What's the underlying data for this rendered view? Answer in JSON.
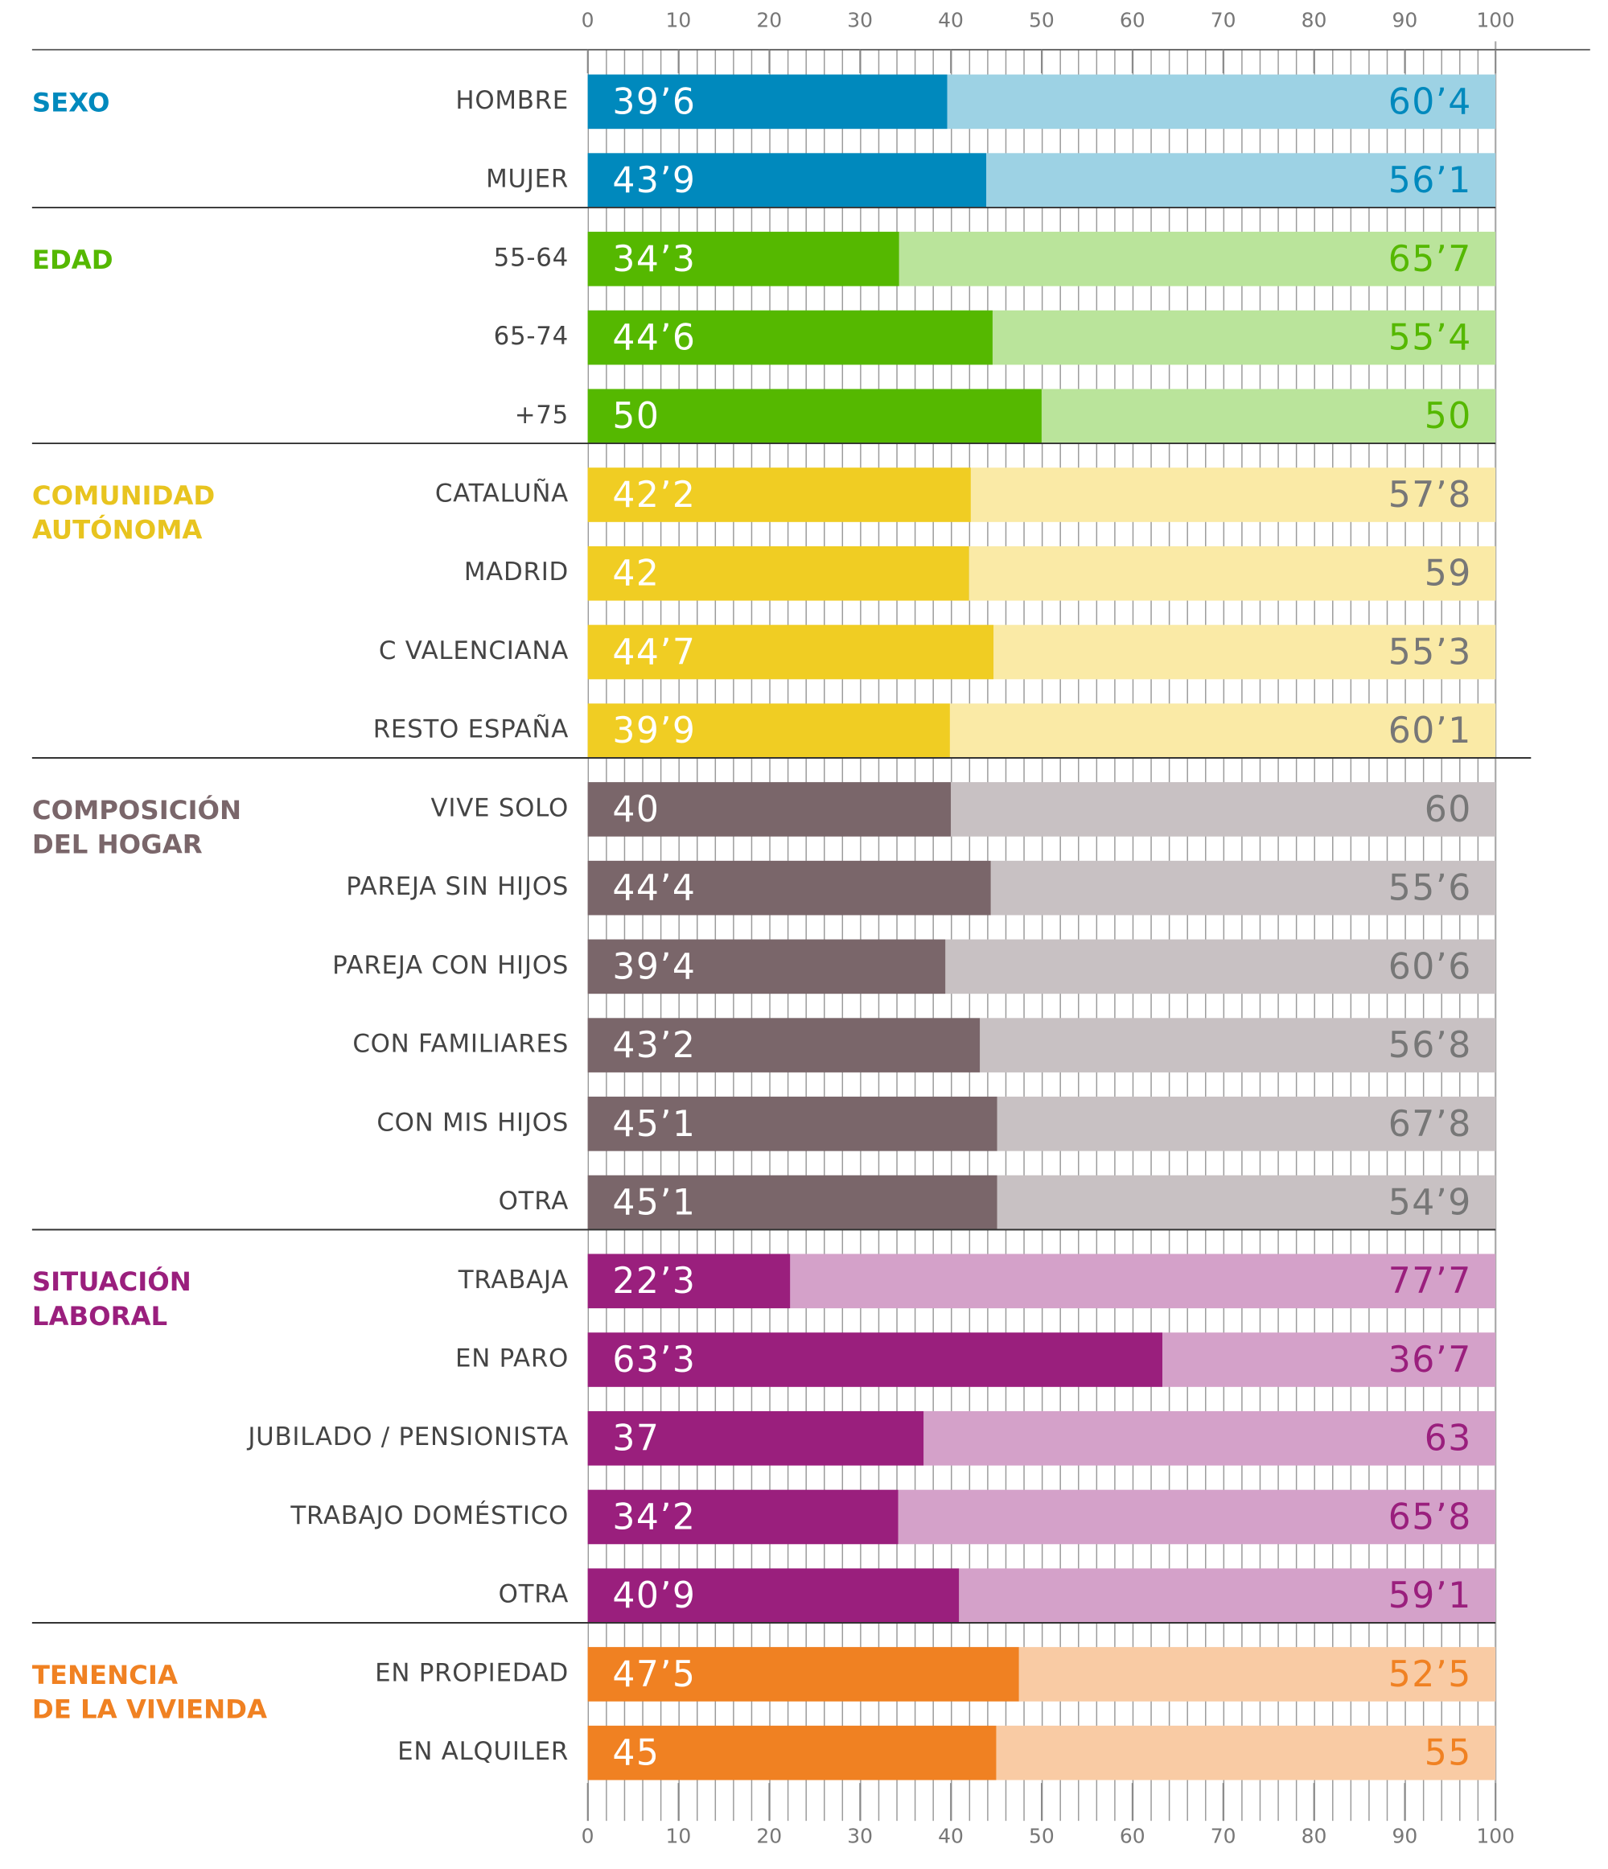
{
  "chart_data": {
    "type": "bar",
    "orientation": "horizontal",
    "stacked": true,
    "xlim": [
      0,
      100
    ],
    "xticks": [
      0,
      10,
      20,
      30,
      40,
      50,
      60,
      70,
      80,
      90,
      100
    ],
    "groups": [
      {
        "name_lines": [
          "SEXO"
        ],
        "color": "#0089bd",
        "light_color": "#9dd2e4",
        "text_color": "#0089bd",
        "categories": [
          "HOMBRE",
          "MUJER"
        ],
        "values": [
          39.6,
          43.9
        ],
        "value_labels": [
          "39’6",
          "43’9"
        ],
        "rest": [
          60.4,
          56.1
        ],
        "rest_labels": [
          "60’4",
          "56’1"
        ]
      },
      {
        "name_lines": [
          "EDAD"
        ],
        "color": "#55b800",
        "light_color": "#bae49b",
        "text_color": "#55b800",
        "categories": [
          "55-64",
          "65-74",
          "+75"
        ],
        "values": [
          34.3,
          44.6,
          50
        ],
        "value_labels": [
          "34’3",
          "44’6",
          "50"
        ],
        "rest": [
          65.7,
          55.4,
          50
        ],
        "rest_labels": [
          "65’7",
          "55’4",
          "50"
        ]
      },
      {
        "name_lines": [
          "COMUNIDAD",
          "AUTÓNOMA"
        ],
        "color": "#f0cd23",
        "light_color": "#faeaa6",
        "text_color": "#777777",
        "name_color": "#e8c41f",
        "categories": [
          "CATALUÑA",
          "MADRID",
          "C VALENCIANA",
          "RESTO ESPAÑA"
        ],
        "values": [
          42.2,
          42,
          44.7,
          39.9
        ],
        "value_labels": [
          "42’2",
          "42",
          "44’7",
          "39’9"
        ],
        "rest": [
          57.8,
          59,
          55.3,
          60.1
        ],
        "rest_labels": [
          "57’8",
          "59",
          "55’3",
          "60’1"
        ]
      },
      {
        "name_lines": [
          "COMPOSICIÓN",
          "DEL HOGAR"
        ],
        "color": "#7a666a",
        "light_color": "#c8c1c3",
        "text_color": "#777777",
        "name_color": "#7a666a",
        "categories": [
          "VIVE SOLO",
          "PAREJA SIN HIJOS",
          "PAREJA CON HIJOS",
          "CON FAMILIARES",
          "CON MIS HIJOS",
          "OTRA"
        ],
        "values": [
          40,
          44.4,
          39.4,
          43.2,
          45.1,
          45.1
        ],
        "value_labels": [
          "40",
          "44’4",
          "39’4",
          "43’2",
          "45’1",
          "45’1"
        ],
        "rest": [
          60,
          55.6,
          60.6,
          56.8,
          67.8,
          54.9
        ],
        "rest_labels": [
          "60",
          "55’6",
          "60’6",
          "56’8",
          "67’8",
          "54’9"
        ]
      },
      {
        "name_lines": [
          "SITUACIÓN",
          "LABORAL"
        ],
        "color": "#9a1f7d",
        "light_color": "#d4a1c9",
        "text_color": "#9a1f7d",
        "categories": [
          "TRABAJA",
          "EN PARO",
          "JUBILADO / PENSIONISTA",
          "TRABAJO DOMÉSTICO",
          "OTRA"
        ],
        "values": [
          22.3,
          63.3,
          37,
          34.2,
          40.9
        ],
        "value_labels": [
          "22’3",
          "63’3",
          "37",
          "34’2",
          "40’9"
        ],
        "rest": [
          77.7,
          36.7,
          63,
          65.8,
          59.1
        ],
        "rest_labels": [
          "77’7",
          "36’7",
          "63",
          "65’8",
          "59’1"
        ]
      },
      {
        "name_lines": [
          "TENENCIA",
          "DE LA VIVIENDA"
        ],
        "color": "#f08122",
        "light_color": "#f9cba4",
        "text_color": "#f08122",
        "categories": [
          "EN PROPIEDAD",
          "EN ALQUILER"
        ],
        "values": [
          47.5,
          45
        ],
        "value_labels": [
          "47’5",
          "45"
        ],
        "rest": [
          52.5,
          55
        ],
        "rest_labels": [
          "52’5",
          "55"
        ]
      }
    ]
  }
}
